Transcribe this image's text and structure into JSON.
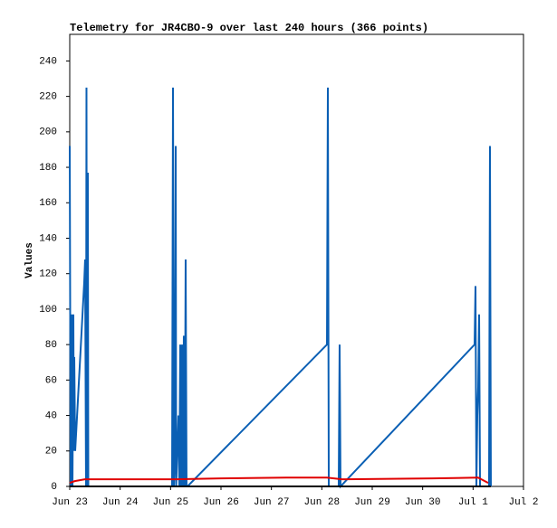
{
  "chart_data": {
    "type": "line",
    "title": "Telemetry for JR4CBO-9 over last 240 hours (366 points)",
    "y_label": "Values",
    "xlim": [
      23,
      32
    ],
    "xticks": [
      {
        "value": 23,
        "label": "Jun 23"
      },
      {
        "value": 24,
        "label": "Jun 24"
      },
      {
        "value": 25,
        "label": "Jun 25"
      },
      {
        "value": 26,
        "label": "Jun 26"
      },
      {
        "value": 27,
        "label": "Jun 27"
      },
      {
        "value": 28,
        "label": "Jun 28"
      },
      {
        "value": 29,
        "label": "Jun 29"
      },
      {
        "value": 30,
        "label": "Jun 30"
      },
      {
        "value": 31,
        "label": "Jul 1"
      },
      {
        "value": 32,
        "label": "Jul 2"
      }
    ],
    "ylim": [
      0,
      255
    ],
    "yticks": [
      0,
      20,
      40,
      60,
      80,
      100,
      120,
      140,
      160,
      180,
      200,
      220,
      240
    ],
    "grid": false,
    "series": [
      {
        "color": "#0a5fb4",
        "x": [
          23.0,
          23.018,
          23.036,
          23.054,
          23.072,
          23.081,
          23.09,
          23.108,
          23.287,
          23.305,
          23.323,
          23.332,
          23.341,
          23.359,
          23.368,
          25.03,
          25.048,
          25.066,
          25.084,
          25.102,
          25.111,
          25.156,
          25.174,
          25.192,
          25.21,
          25.228,
          25.246,
          25.263,
          25.281,
          25.299,
          25.317,
          25.335,
          28.102,
          28.12,
          28.138,
          28.335,
          28.353,
          28.371,
          31.03,
          31.048,
          31.066,
          31.084,
          31.102,
          31.12,
          31.138,
          31.317,
          31.335,
          31.353
        ],
        "values": [
          192,
          0,
          97,
          0,
          97,
          20,
          73,
          20,
          115,
          128,
          0,
          225,
          0,
          177,
          0,
          0,
          225,
          0,
          15,
          192,
          0,
          40,
          0,
          80,
          0,
          80,
          0,
          85,
          0,
          128,
          0,
          0,
          80,
          225,
          0,
          0,
          80,
          0,
          80,
          113,
          0,
          40,
          56,
          97,
          0,
          0,
          192,
          0
        ]
      },
      {
        "color": "#e00000",
        "x": [
          23.0,
          23.1,
          23.3,
          25.1,
          26.0,
          27.3,
          28.1,
          28.4,
          30.2,
          31.1,
          31.3
        ],
        "values": [
          2,
          3,
          4,
          4,
          4.5,
          5,
          5,
          4,
          4.5,
          5,
          2
        ]
      },
      {
        "color": "#000000",
        "x": [
          23.0,
          31.35
        ],
        "values": [
          0,
          0
        ]
      }
    ]
  }
}
